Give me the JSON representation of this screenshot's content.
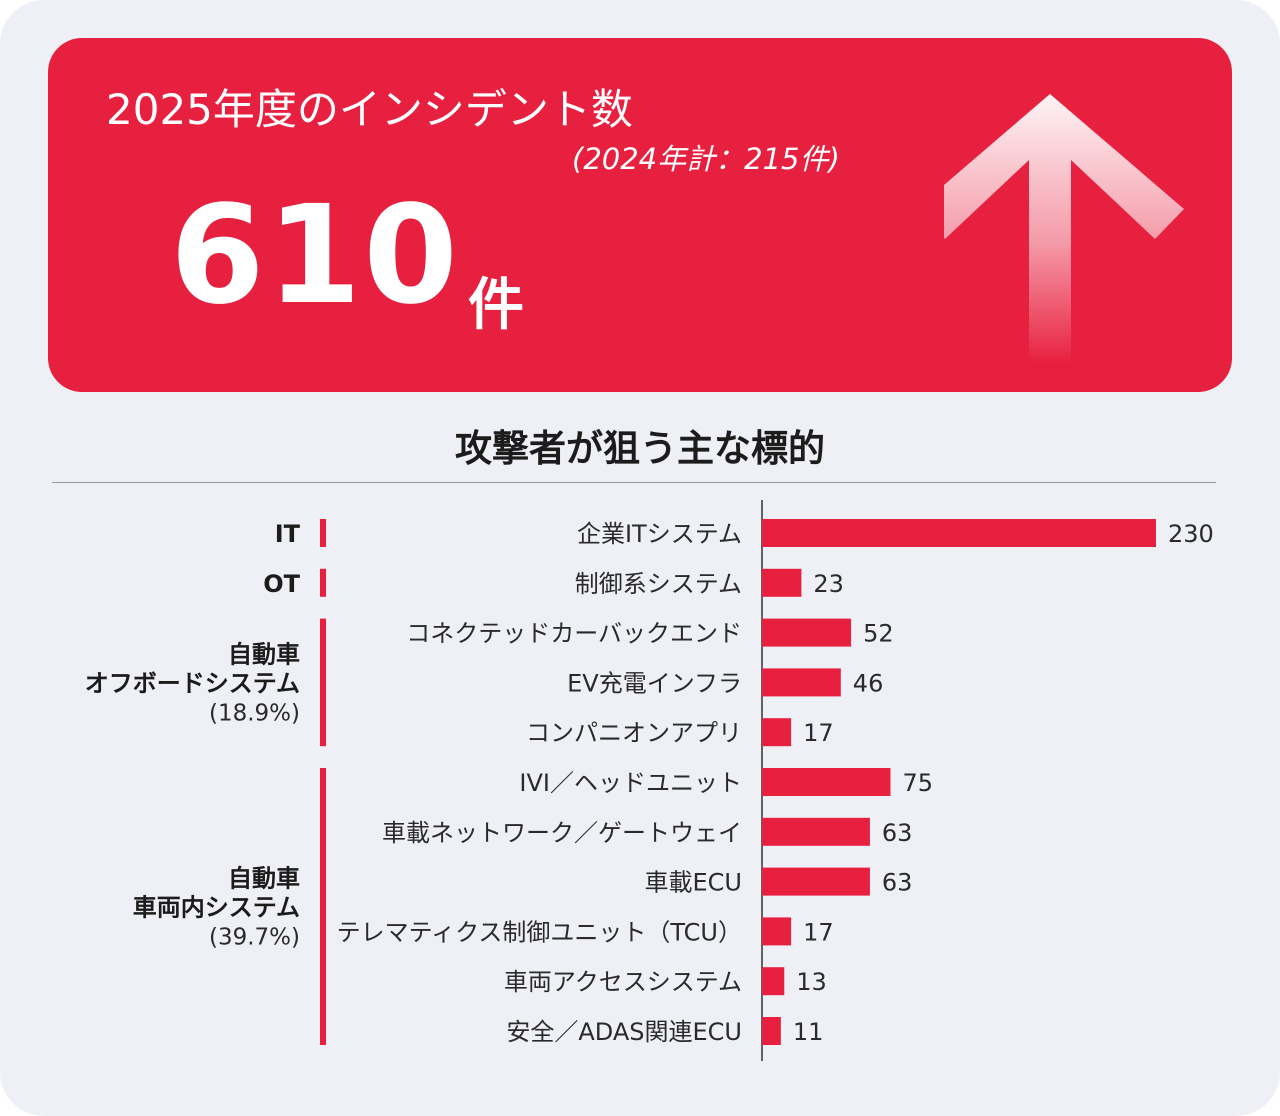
{
  "banner": {
    "title": "2025年度のインシデント数",
    "subtitle": "(2024年計：215件)",
    "count": "610",
    "unit": "件"
  },
  "section_title": "攻撃者が狙う主な標的",
  "colors": {
    "accent": "#e8203f",
    "background": "#eef0f6",
    "text": "#1c1c1c"
  },
  "icons": {
    "banner_arrow": "up-arrow-icon"
  },
  "chart_data": {
    "type": "bar",
    "orientation": "horizontal",
    "title": "攻撃者が狙う主な標的",
    "categories": [
      "企業ITシステム",
      "制御系システム",
      "コネクテッドカーバックエンド",
      "EV充電インフラ",
      "コンパニオンアプリ",
      "IVI／ヘッドユニット",
      "車載ネットワーク／ゲートウェイ",
      "車載ECU",
      "テレマティクス制御ユニット（TCU）",
      "車両アクセスシステム",
      "安全／ADAS関連ECU"
    ],
    "values": [
      230,
      23,
      52,
      46,
      17,
      75,
      63,
      63,
      17,
      13,
      11
    ],
    "xlim": [
      0,
      230
    ],
    "groups": [
      {
        "lines": [
          "IT"
        ],
        "percent": "",
        "start": 0,
        "end": 0
      },
      {
        "lines": [
          "OT"
        ],
        "percent": "",
        "start": 1,
        "end": 1
      },
      {
        "lines": [
          "自動車",
          "オフボードシステム"
        ],
        "percent": "(18.9%)",
        "start": 2,
        "end": 4
      },
      {
        "lines": [
          "自動車",
          "車両内システム"
        ],
        "percent": "(39.7%)",
        "start": 5,
        "end": 10
      }
    ]
  }
}
